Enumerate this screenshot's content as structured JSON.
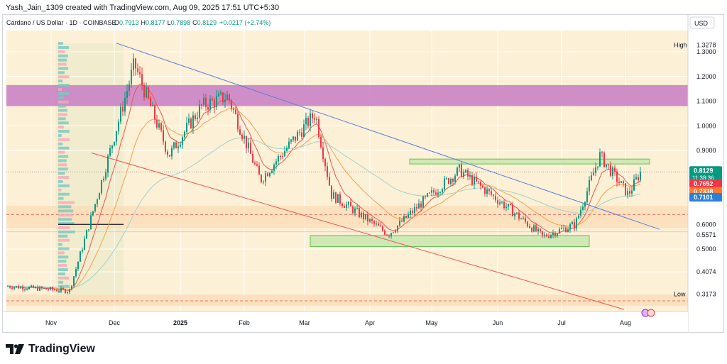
{
  "author_line": "Yash_Jain_1309 created with TradingView.com, Aug 09, 2025 17:51 UTC+5:30",
  "symbol": {
    "title": "Cardano / US Dollar · 1D · COINBASE",
    "ohlc": [
      {
        "k": "O",
        "v": "0.7913"
      },
      {
        "k": "H",
        "v": "0.8177"
      },
      {
        "k": "L",
        "v": "0.7898"
      },
      {
        "k": "C",
        "v": "0.8129"
      }
    ],
    "change": "+0.0217 (+2.74%)"
  },
  "currency": "USD",
  "brand": "TradingView",
  "colors": {
    "plot_bg": "#fcf0d6",
    "up": "#089981",
    "down": "#f23645",
    "resistance_zone": "#c77dc4",
    "support_zone": "#cfe8b4",
    "support_zone_border": "#6cbf5a",
    "lower_band": "#fbdcb4",
    "blue_trendline": "#5b7ddb",
    "red_trendline": "#ef5350",
    "ma_red": "#ef5350",
    "ma_orange": "#f6a24d",
    "ma_teal": "#9ed3cf"
  },
  "chart_data": {
    "type": "candlestick",
    "timeframe": "1D",
    "x_tick_labels": [
      "Nov",
      "Dec",
      "2025",
      "Feb",
      "Mar",
      "Apr",
      "May",
      "Jun",
      "Jul",
      "Aug"
    ],
    "y_tick_labels": [
      "1.3000",
      "1.2000",
      "1.1000",
      "1.0000",
      "0.9000",
      "0.6000",
      "0.5000"
    ],
    "ylim": [
      0.24,
      1.37
    ],
    "grid": true,
    "price_tags": [
      {
        "label": "High",
        "value": "1.3278",
        "y": 1.3278,
        "kind": "plain"
      },
      {
        "label": "",
        "value": "0.8129",
        "sub": "11:38:36",
        "y": 0.8129,
        "kind": "green"
      },
      {
        "label": "",
        "value": "0.7652",
        "y": 0.7652,
        "kind": "red"
      },
      {
        "label": "",
        "value": "0.7338",
        "y": 0.7338,
        "kind": "orange"
      },
      {
        "label": "",
        "value": "0.7101",
        "y": 0.7101,
        "kind": "teal"
      },
      {
        "label": "",
        "value": "0.5571",
        "y": 0.5571,
        "kind": "plain"
      },
      {
        "label": "",
        "value": "0.4074",
        "y": 0.4074,
        "kind": "plain"
      },
      {
        "label": "Low",
        "value": "0.3173",
        "y": 0.3173,
        "kind": "plain"
      }
    ],
    "last_price": 0.8129,
    "zones": [
      {
        "name": "Resistance zone",
        "y_low": 1.08,
        "y_high": 1.165
      },
      {
        "name": "Support zone low",
        "y_low": 0.51,
        "y_high": 0.555
      },
      {
        "name": "Support zone high",
        "y_low": 0.845,
        "y_high": 0.865
      }
    ],
    "key_points": [
      {
        "date": "2024-10-01",
        "close": 0.35
      },
      {
        "date": "2024-11-01",
        "close": 0.33
      },
      {
        "date": "2024-11-15",
        "close": 0.72
      },
      {
        "date": "2024-12-03",
        "close": 1.25
      },
      {
        "date": "2024-12-20",
        "close": 0.88
      },
      {
        "date": "2025-01-05",
        "close": 1.08
      },
      {
        "date": "2025-01-18",
        "close": 1.12
      },
      {
        "date": "2025-02-03",
        "close": 0.78
      },
      {
        "date": "2025-03-02",
        "close": 1.05
      },
      {
        "date": "2025-03-10",
        "close": 0.72
      },
      {
        "date": "2025-04-07",
        "close": 0.56
      },
      {
        "date": "2025-04-25",
        "close": 0.7
      },
      {
        "date": "2025-05-12",
        "close": 0.82
      },
      {
        "date": "2025-06-06",
        "close": 0.66
      },
      {
        "date": "2025-06-22",
        "close": 0.55
      },
      {
        "date": "2025-07-08",
        "close": 0.6
      },
      {
        "date": "2025-07-20",
        "close": 0.88
      },
      {
        "date": "2025-08-03",
        "close": 0.72
      },
      {
        "date": "2025-08-09",
        "close": 0.8129
      }
    ]
  }
}
